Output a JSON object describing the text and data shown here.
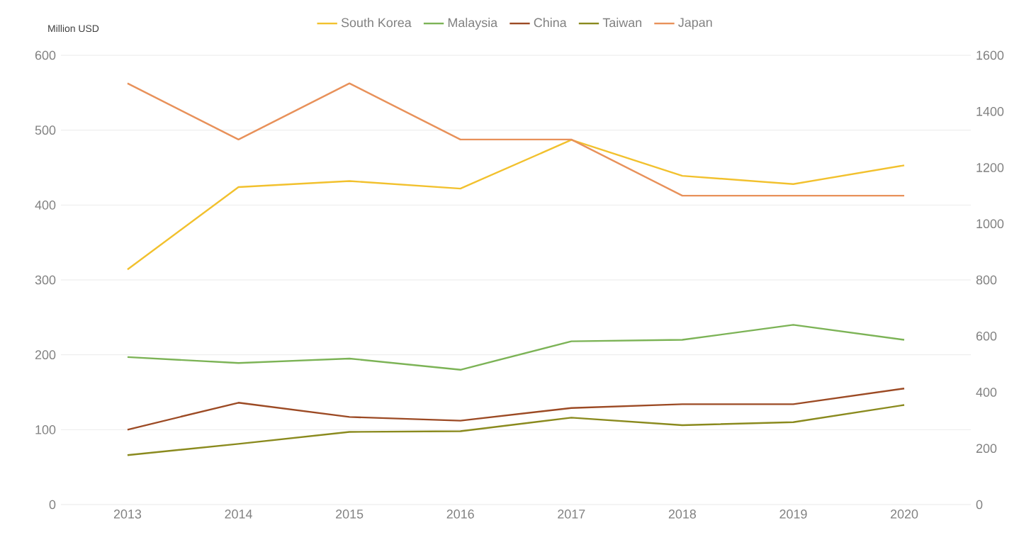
{
  "chart_data": {
    "type": "line",
    "categories": [
      "2013",
      "2014",
      "2015",
      "2016",
      "2017",
      "2018",
      "2019",
      "2020"
    ],
    "series": [
      {
        "name": "South Korea",
        "color": "#f2c12e",
        "values": [
          314,
          424,
          432,
          422,
          487,
          439,
          428,
          453
        ]
      },
      {
        "name": "Malaysia",
        "color": "#7cb356",
        "values": [
          197,
          189,
          195,
          180,
          218,
          220,
          240,
          220
        ]
      },
      {
        "name": "China",
        "color": "#9c4a24",
        "values": [
          100,
          136,
          117,
          112,
          129,
          134,
          134,
          155
        ]
      },
      {
        "name": "Taiwan",
        "color": "#8a8a1e",
        "values": [
          66,
          81,
          97,
          98,
          116,
          106,
          110,
          133
        ]
      },
      {
        "name": "Japan",
        "color": "#e8915a",
        "axis": "y2",
        "values": [
          1500,
          1300,
          1500,
          1300,
          1300,
          1100,
          1100,
          1100
        ]
      }
    ],
    "ylim": [
      0,
      600
    ],
    "yticks": [
      0,
      100,
      200,
      300,
      400,
      500,
      600
    ],
    "y2lim": [
      0,
      1600
    ],
    "y2ticks": [
      0,
      200,
      400,
      600,
      800,
      1000,
      1200,
      1400,
      1600
    ],
    "annotations": [
      "Million USD"
    ],
    "grid": "y",
    "legend": "top",
    "marker": "none",
    "line_style": "solid"
  }
}
